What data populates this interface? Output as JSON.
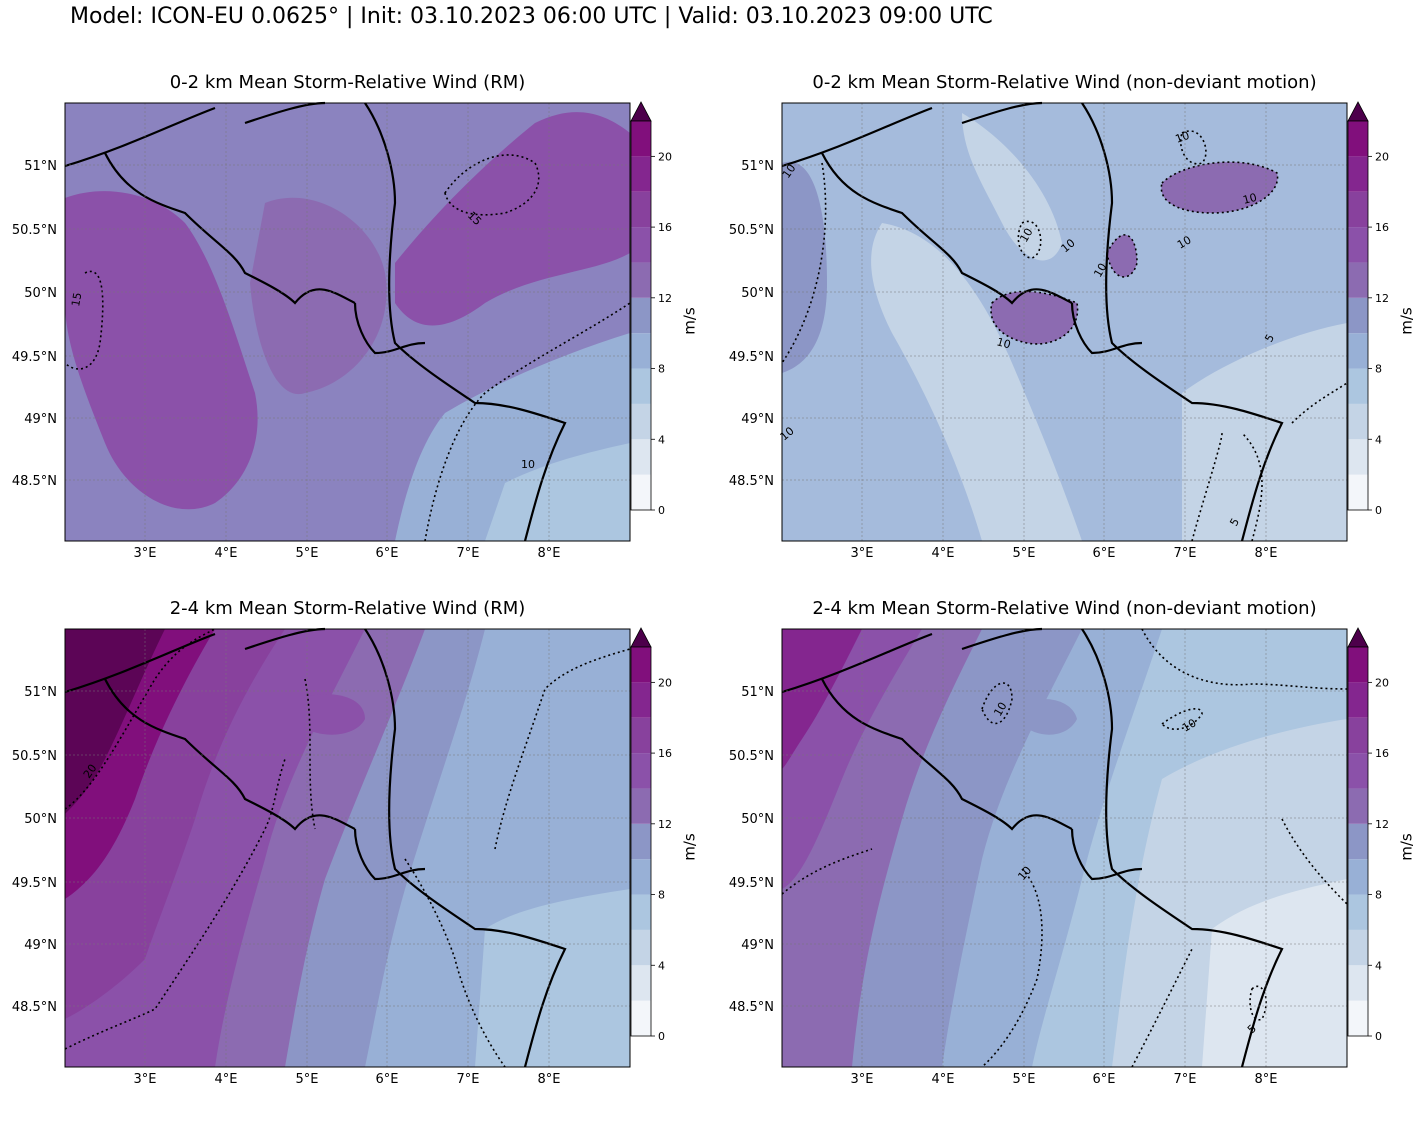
{
  "suptitle": "Model: ICON-EU 0.0625° | Init: 03.10.2023 06:00 UTC | Valid: 03.10.2023 09:00 UTC",
  "colorbar": {
    "units": "m/s",
    "ticks": [
      "0",
      "4",
      "8",
      "12",
      "16",
      "20"
    ],
    "levels": [
      0,
      2,
      4,
      6,
      8,
      10,
      12,
      14,
      16,
      18,
      20,
      22
    ],
    "colors": [
      "#f3f6fa",
      "#dde6f0",
      "#c4d4e6",
      "#acc6e0",
      "#98b0d6",
      "#8c96c6",
      "#8c6bb1",
      "#8b51a9",
      "#88419d",
      "#84268f",
      "#810f7c",
      "#5c0556"
    ],
    "extend_color": "#4d004b"
  },
  "axes": {
    "lon_labels": [
      "3°E",
      "4°E",
      "5°E",
      "6°E",
      "7°E",
      "8°E"
    ],
    "lat_labels": [
      "51°N",
      "50.5°N",
      "50°N",
      "49.5°N",
      "49°N",
      "48.5°N"
    ]
  },
  "panels": [
    {
      "title": "0-2 km Mean Storm-Relative Wind (RM)",
      "contour_labels": [
        "15",
        "15",
        "10"
      ],
      "fill": {
        "base": "#8b83bf",
        "patches": [
          "#8b51a9",
          "#8c6bb1",
          "#98b0d6",
          "#acc6e0"
        ]
      }
    },
    {
      "title": "0-2 km Mean Storm-Relative Wind (non-deviant motion)",
      "contour_labels": [
        "10",
        "10",
        "10",
        "10",
        "10",
        "10",
        "10",
        "10",
        "5",
        "5",
        "10"
      ],
      "fill": {
        "base": "#a5bbdc",
        "patches": [
          "#8c96c6",
          "#98b0d6",
          "#c4d4e6",
          "#8c6bb1"
        ]
      }
    },
    {
      "title": "2-4 km Mean Storm-Relative Wind (RM)",
      "contour_labels": [
        "20"
      ],
      "fill": {
        "base": "#98b0d6",
        "patches": [
          "#5c0556",
          "#810f7c",
          "#88419d",
          "#8b51a9",
          "#8c6bb1",
          "#8c96c6",
          "#acc6e0"
        ]
      }
    },
    {
      "title": "2-4 km Mean Storm-Relative Wind (non-deviant motion)",
      "contour_labels": [
        "10",
        "10",
        "10",
        "5"
      ],
      "fill": {
        "base": "#acc6e0",
        "patches": [
          "#84268f",
          "#8b51a9",
          "#8c6bb1",
          "#8c96c6",
          "#98b0d6",
          "#c4d4e6",
          "#dde6f0"
        ]
      }
    }
  ]
}
